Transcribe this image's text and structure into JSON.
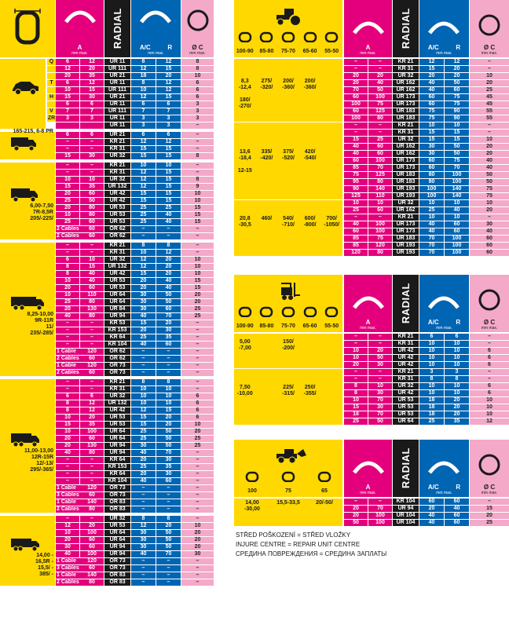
{
  "headers": {
    "a": "A",
    "mm": "mm max.",
    "radial": "RADIAL",
    "ac": "A/C",
    "r": "R",
    "c": "Ø C"
  },
  "left_sections": [
    {
      "icon": "car-icon",
      "sizes": "",
      "speed": [
        "Q",
        "",
        "",
        "T",
        "",
        "H",
        "",
        "V",
        "ZR"
      ],
      "rows": [
        [
          "6",
          "12",
          "UR 11",
          "8",
          "12",
          "8"
        ],
        [
          "12",
          "20",
          "UR 111",
          "12",
          "15",
          "8"
        ],
        [
          "20",
          "35",
          "UR 21",
          "18",
          "20",
          "10"
        ],
        [
          "6",
          "12",
          "UR 11",
          "8",
          "12",
          "6"
        ],
        [
          "10",
          "15",
          "UR 111",
          "10",
          "12",
          "6"
        ],
        [
          "15",
          "30",
          "UR 21",
          "12",
          "15",
          "6"
        ],
        [
          "6",
          "6",
          "UR 11",
          "6",
          "6",
          "3"
        ],
        [
          "7",
          "7",
          "UR 111",
          "7",
          "7",
          "3"
        ],
        [
          "3",
          "3",
          "UR 11",
          "3",
          "3",
          "3"
        ],
        [
          "",
          "",
          "UR 11",
          "3",
          "3",
          "–"
        ]
      ]
    },
    {
      "icon": "van-icon",
      "sizes": "165-215, 6-8 PR",
      "rows": [
        [
          "6",
          "6",
          "UR 21",
          "6",
          "6",
          "–"
        ],
        [
          "–",
          "–",
          "KR 21",
          "12",
          "12",
          "–"
        ],
        [
          "–",
          "–",
          "KR 31",
          "15",
          "15",
          "–"
        ],
        [
          "15",
          "30",
          "UR 32",
          "15",
          "15",
          "8"
        ]
      ]
    },
    {
      "icon": "truck-icon",
      "sizes": "6,00-7,50\n7R-8,5R\n205/-225/",
      "rows": [
        [
          "–",
          "–",
          "KR 21",
          "10",
          "10",
          "–"
        ],
        [
          "–",
          "–",
          "KR 31",
          "12",
          "15",
          "–"
        ],
        [
          "10",
          "10",
          "UR 32",
          "12",
          "15",
          "8"
        ],
        [
          "15",
          "35",
          "UR 132",
          "12",
          "15",
          "9"
        ],
        [
          "20",
          "60",
          "UR 42",
          "15",
          "15",
          "10"
        ],
        [
          "25",
          "50",
          "UR 42",
          "15",
          "15",
          "10"
        ],
        [
          "20",
          "80",
          "UR 53",
          "25",
          "25",
          "15"
        ],
        [
          "10",
          "80",
          "UR 53",
          "25",
          "40",
          "15"
        ],
        [
          "25",
          "60",
          "UR 53",
          "25",
          "40",
          "15"
        ],
        [
          "2 Cables",
          "60",
          "OR 62",
          "–",
          "–",
          "–"
        ],
        [
          "2 Cables",
          "60",
          "OR 62",
          "–",
          "–",
          "–"
        ]
      ]
    },
    {
      "icon": "truck-trailer-icon",
      "sizes": "8,25-10,00\n9R-11R\n11/\n235/-285/",
      "rows": [
        [
          "–",
          "–",
          "KR 21",
          "8",
          "8",
          "–"
        ],
        [
          "–",
          "–",
          "KR 31",
          "10",
          "12",
          "–"
        ],
        [
          "6",
          "10",
          "UR 32",
          "12",
          "20",
          "10"
        ],
        [
          "8",
          "15",
          "UR 132",
          "12",
          "20",
          "10"
        ],
        [
          "8",
          "40",
          "UR 42",
          "15",
          "20",
          "10"
        ],
        [
          "10",
          "40",
          "UR 53",
          "20",
          "40",
          "15"
        ],
        [
          "20",
          "60",
          "UR 53",
          "20",
          "40",
          "15"
        ],
        [
          "10",
          "110",
          "UR 64",
          "30",
          "50",
          "20"
        ],
        [
          "25",
          "80",
          "UR 64",
          "30",
          "50",
          "20"
        ],
        [
          "20",
          "130",
          "UR 84",
          "30",
          "60",
          "25"
        ],
        [
          "40",
          "80",
          "UR 94",
          "40",
          "70",
          "25"
        ],
        [
          "–",
          "–",
          "KR 53",
          "15",
          "20",
          "–"
        ],
        [
          "–",
          "–",
          "KR 153",
          "20",
          "30",
          "–"
        ],
        [
          "–",
          "–",
          "KR 64",
          "25",
          "35",
          "–"
        ],
        [
          "–",
          "–",
          "KR 104",
          "40",
          "60",
          "–"
        ],
        [
          "1 Cable",
          "120",
          "OR 62",
          "–",
          "–",
          "–"
        ],
        [
          "2 Cables",
          "60",
          "OR 62",
          "–",
          "–",
          "–"
        ],
        [
          "1 Cable",
          "120",
          "OR 73",
          "–",
          "–",
          "–"
        ],
        [
          "2 Cables",
          "60",
          "OR 73",
          "–",
          "–",
          "–"
        ]
      ]
    },
    {
      "icon": "heavy-truck-icon",
      "sizes": "11,00-13,00\n12R-15R\n12/-13/\n295/-365/",
      "rows": [
        [
          "–",
          "–",
          "KR 21",
          "8",
          "8",
          "–"
        ],
        [
          "–",
          "–",
          "KR 31",
          "10",
          "10",
          "–"
        ],
        [
          "6",
          "6",
          "UR 32",
          "10",
          "10",
          "6"
        ],
        [
          "8",
          "12",
          "UR 132",
          "10",
          "10",
          "6"
        ],
        [
          "8",
          "12",
          "UR 42",
          "12",
          "15",
          "6"
        ],
        [
          "10",
          "20",
          "UR 53",
          "15",
          "20",
          "6"
        ],
        [
          "15",
          "35",
          "UR 53",
          "15",
          "20",
          "10"
        ],
        [
          "10",
          "100",
          "UR 64",
          "25",
          "50",
          "20"
        ],
        [
          "20",
          "60",
          "UR 64",
          "25",
          "50",
          "25"
        ],
        [
          "20",
          "130",
          "UR 94",
          "30",
          "50",
          "25"
        ],
        [
          "40",
          "80",
          "UR 94",
          "40",
          "70",
          "–"
        ],
        [
          "–",
          "–",
          "KR 64",
          "20",
          "30",
          "–"
        ],
        [
          "–",
          "–",
          "KR 153",
          "25",
          "35",
          "–"
        ],
        [
          "–",
          "–",
          "KR 64",
          "20",
          "30",
          "–"
        ],
        [
          "–",
          "–",
          "KR 104",
          "40",
          "60",
          "–"
        ],
        [
          "1 Cable",
          "120",
          "OR 73",
          "–",
          "–",
          "–"
        ],
        [
          "3 Cables",
          "60",
          "OR 73",
          "–",
          "–",
          "–"
        ],
        [
          "1 Cable",
          "140",
          "OR 83",
          "–",
          "–",
          "–"
        ],
        [
          "2 Cables",
          "80",
          "OR 83",
          "–",
          "–",
          "–"
        ]
      ]
    },
    {
      "icon": "trailer-truck-icon",
      "sizes": "14,00 -\n16,5R -\n15,5/ -\n385/ -",
      "rows": [
        [
          "–",
          "–",
          "UR 32",
          "8",
          "8",
          "–"
        ],
        [
          "12",
          "20",
          "UR 53",
          "12",
          "20",
          "10"
        ],
        [
          "10",
          "100",
          "UR 64",
          "30",
          "50",
          "20"
        ],
        [
          "20",
          "60",
          "UR 64",
          "30",
          "50",
          "20"
        ],
        [
          "30",
          "60",
          "UR 94",
          "30",
          "50",
          "20"
        ],
        [
          "40",
          "100",
          "UR 94",
          "40",
          "70",
          "30"
        ],
        [
          "1 Cable",
          "120",
          "OR 73",
          "–",
          "–",
          "–"
        ],
        [
          "3 Cables",
          "60",
          "OR 73",
          "–",
          "–",
          "–"
        ],
        [
          "1 Cable",
          "140",
          "OR 83",
          "–",
          "–",
          "–"
        ],
        [
          "2 Cables",
          "80",
          "OR 83",
          "–",
          "–",
          "–"
        ]
      ]
    }
  ],
  "right_tables": [
    {
      "icon": "tractor-icon",
      "cols": [
        "100-90",
        "85-80",
        "75-70",
        "65-60",
        "55-50"
      ],
      "groups": [
        {
          "sizes": [
            "8,3\n-12,4\n\n180/\n-270/",
            "275/\n-320/",
            "200/\n-360/",
            "200/\n-360/",
            ""
          ],
          "rows": [
            [
              "–",
              "–",
              "KR 21",
              "12",
              "12",
              "–"
            ],
            [
              "–",
              "–",
              "KR 31",
              "15",
              "20",
              "–"
            ],
            [
              "20",
              "20",
              "UR 32",
              "20",
              "20",
              "10"
            ],
            [
              "20",
              "40",
              "UR 162",
              "40",
              "50",
              "20"
            ],
            [
              "70",
              "50",
              "UR 162",
              "40",
              "60",
              "25"
            ],
            [
              "60",
              "100",
              "UR 173",
              "60",
              "75",
              "45"
            ],
            [
              "100",
              "75",
              "UR 173",
              "60",
              "75",
              "45"
            ],
            [
              "60",
              "125",
              "UR 183",
              "75",
              "90",
              "55"
            ],
            [
              "100",
              "80",
              "UR 183",
              "75",
              "90",
              "55"
            ]
          ]
        },
        {
          "sizes": [
            "13,6\n-18,4\n\n12-15",
            "335/\n-420/",
            "375/\n-520/",
            "420/\n-540/",
            ""
          ],
          "rows": [
            [
              "–",
              "–",
              "KR 21",
              "10",
              "10",
              "–"
            ],
            [
              "–",
              "–",
              "KR 31",
              "15",
              "15",
              "–"
            ],
            [
              "15",
              "25",
              "UR 32",
              "15",
              "15",
              "10"
            ],
            [
              "40",
              "60",
              "UR 162",
              "30",
              "50",
              "20"
            ],
            [
              "40",
              "60",
              "UR 162",
              "30",
              "50",
              "20"
            ],
            [
              "60",
              "100",
              "UR 173",
              "60",
              "75",
              "40"
            ],
            [
              "85",
              "70",
              "UR 173",
              "60",
              "70",
              "40"
            ],
            [
              "75",
              "125",
              "UR 183",
              "80",
              "100",
              "50"
            ],
            [
              "95",
              "80",
              "UR 183",
              "80",
              "100",
              "50"
            ],
            [
              "90",
              "140",
              "UR 193",
              "100",
              "140",
              "75"
            ],
            [
              "125",
              "110",
              "UR 193",
              "100",
              "140",
              "75"
            ]
          ]
        },
        {
          "sizes": [
            "20,8\n-30,5",
            "460/",
            "540/\n-710/",
            "600/\n-800/",
            "700/\n-1050/"
          ],
          "rows": [
            [
              "10",
              "10",
              "UR 32",
              "10",
              "10",
              "10"
            ],
            [
              "25",
              "60",
              "UR 162",
              "25",
              "40",
              "20"
            ],
            [
              "–",
              "–",
              "KR 21",
              "10",
              "10",
              "–"
            ],
            [
              "40",
              "100",
              "UR 173",
              "40",
              "60",
              "30"
            ],
            [
              "60",
              "100",
              "UR 173",
              "40",
              "60",
              "40"
            ],
            [
              "85",
              "75",
              "UR 183",
              "70",
              "100",
              "60"
            ],
            [
              "85",
              "120",
              "UR 193",
              "70",
              "100",
              "60"
            ],
            [
              "120",
              "80",
              "UR 193",
              "70",
              "100",
              "60"
            ]
          ]
        }
      ]
    },
    {
      "icon": "forklift-icon",
      "cols": [
        "100-90",
        "85-80",
        "75-70",
        "65-60",
        "55-50"
      ],
      "groups": [
        {
          "sizes": [
            "5,00\n-7,00",
            "",
            "150/\n-200/",
            "",
            ""
          ],
          "rows": [
            [
              "–",
              "–",
              "KR 21",
              "6",
              "6",
              "–"
            ],
            [
              "–",
              "–",
              "KR 31",
              "10",
              "10",
              "–"
            ],
            [
              "10",
              "20",
              "UR 42",
              "10",
              "10",
              "6"
            ],
            [
              "10",
              "50",
              "UR 42",
              "10",
              "10",
              "6"
            ],
            [
              "20",
              "30",
              "UR 42",
              "10",
              "10",
              "6"
            ]
          ]
        },
        {
          "sizes": [
            "7,50\n-10,00",
            "",
            "225/\n-315/",
            "250/\n-355/",
            ""
          ],
          "rows": [
            [
              "–",
              "–",
              "KR 21",
              "3",
              "3",
              "–"
            ],
            [
              "–",
              "–",
              "KR 31",
              "8",
              "8",
              "–"
            ],
            [
              "8",
              "10",
              "UR 32",
              "10",
              "10",
              "6"
            ],
            [
              "8",
              "30",
              "UR 42",
              "10",
              "10",
              "6"
            ],
            [
              "10",
              "70",
              "UR 53",
              "18",
              "20",
              "10"
            ],
            [
              "15",
              "30",
              "UR 53",
              "18",
              "20",
              "10"
            ],
            [
              "18",
              "70",
              "UR 53",
              "18",
              "20",
              "10"
            ],
            [
              "25",
              "50",
              "UR 64",
              "25",
              "35",
              "12"
            ]
          ]
        }
      ]
    },
    {
      "icon": "loader-icon",
      "cols": [
        "100",
        "75",
        "65"
      ],
      "groups": [
        {
          "sizes": [
            "14,00\n-30,00",
            "15,5-33,5",
            "20/-50/"
          ],
          "rows": [
            [
              "–",
              "–",
              "KR 104",
              "60",
              "60",
              "–"
            ],
            [
              "20",
              "70",
              "UR 94",
              "20",
              "40",
              "15"
            ],
            [
              "20",
              "100",
              "UR 104",
              "40",
              "60",
              "20"
            ],
            [
              "50",
              "100",
              "UR 104",
              "40",
              "60",
              "25"
            ]
          ]
        }
      ]
    }
  ],
  "notes": [
    "STŘED POŠKOZENÍ = STŘED VLOŽKY",
    "INJURE CENTRE = REPAIR UNIT CENTRE",
    "СРЕДИНА ПОВРЕЖДЕНИЯ = СРЕДИНА ЗАПЛАТЫ"
  ]
}
